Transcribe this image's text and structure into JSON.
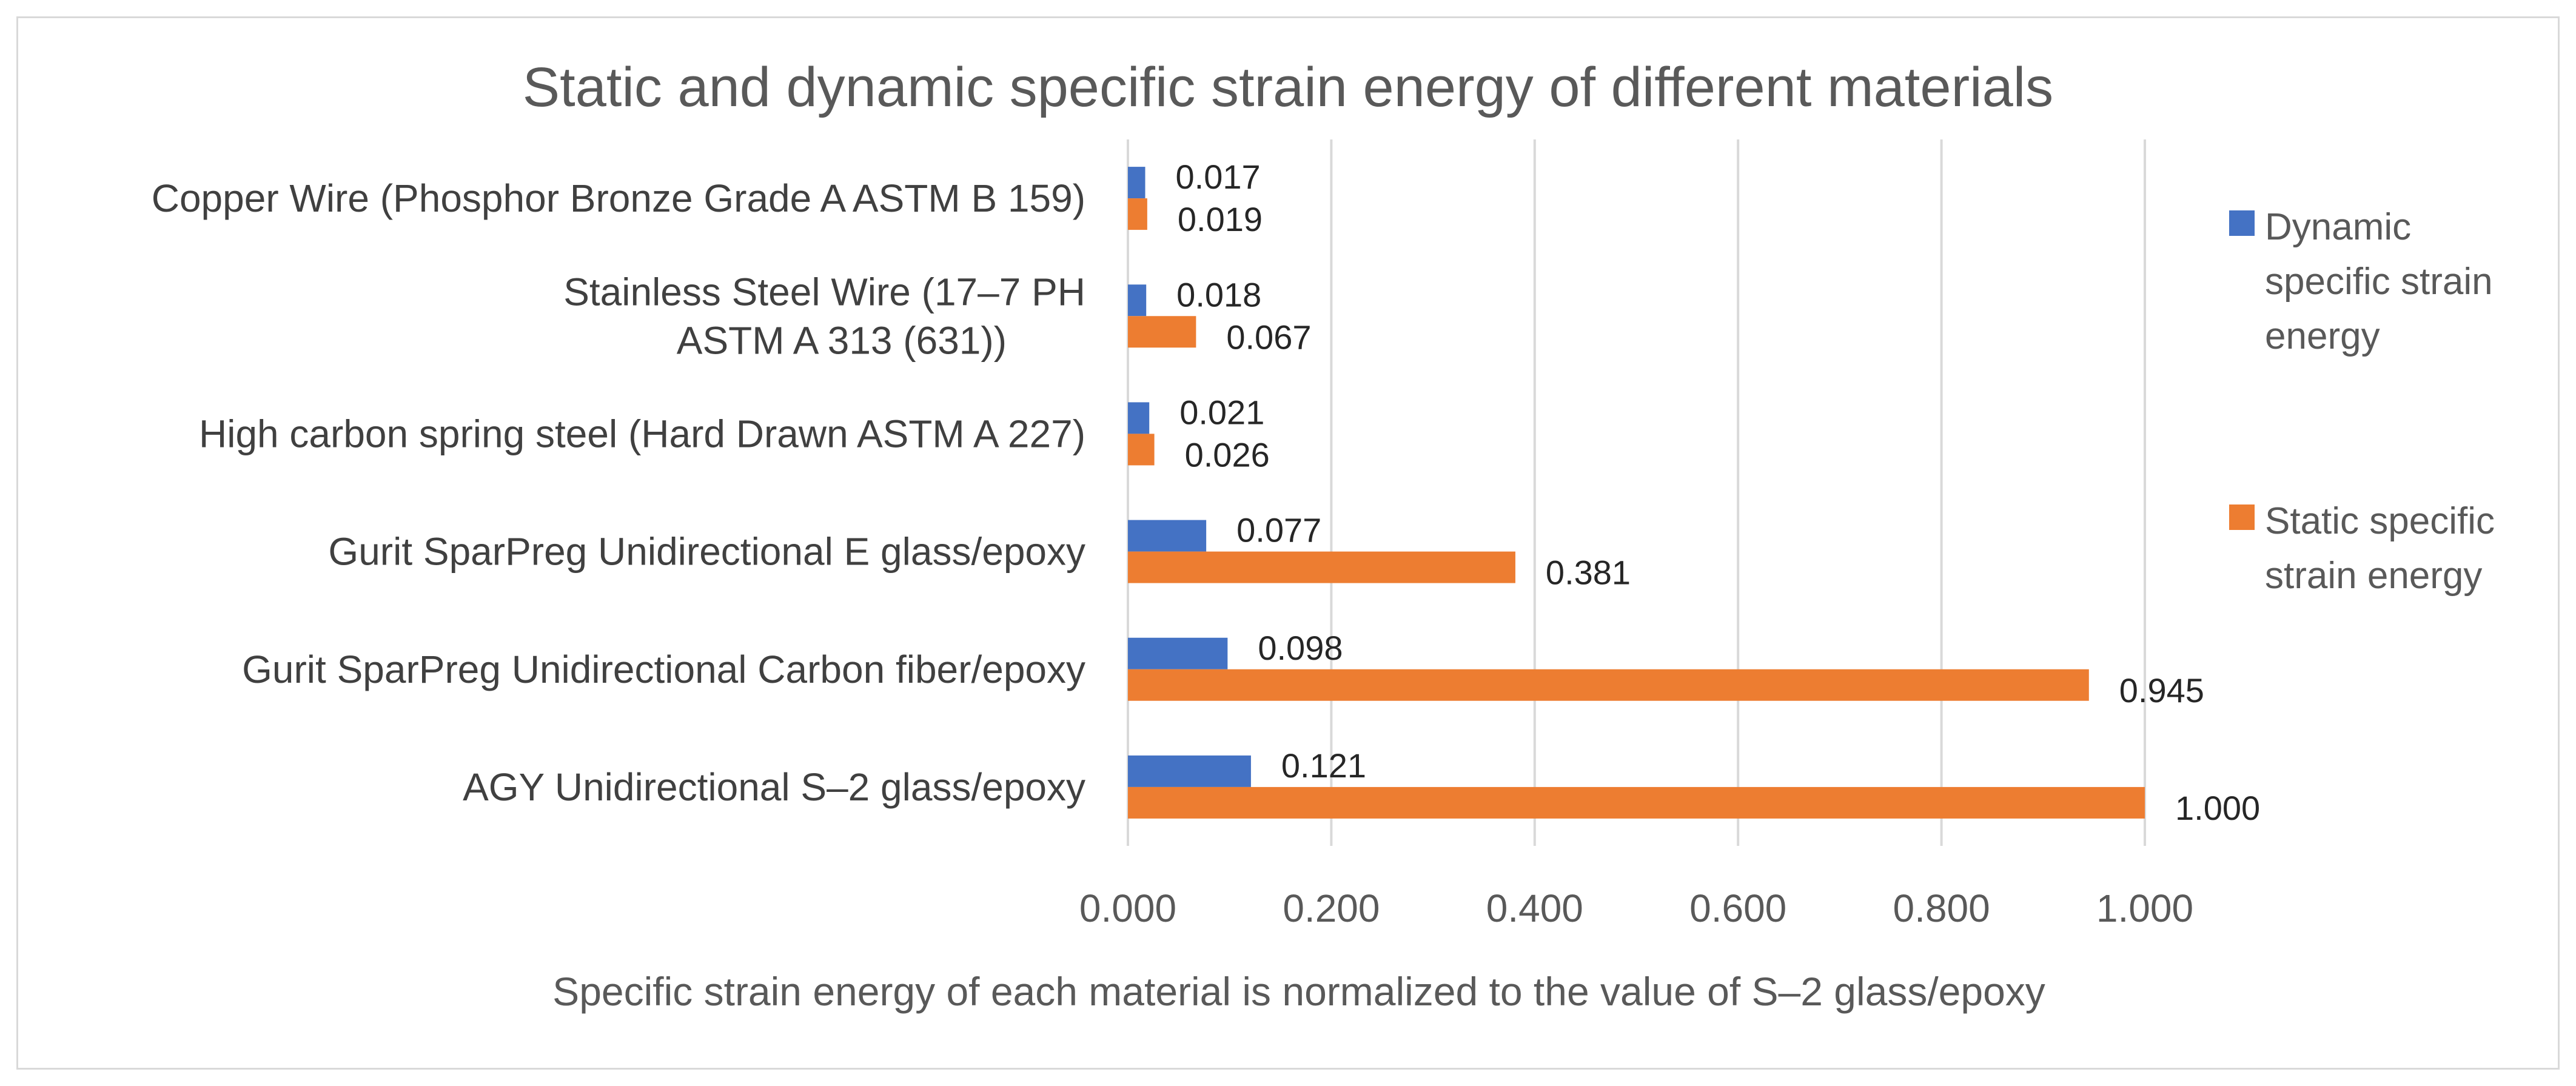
{
  "chart_data": {
    "type": "bar",
    "orientation": "horizontal",
    "title": "Static and dynamic specific strain energy of different materials",
    "xlabel": "Specific strain energy of each material is normalized to the value of  S–2 glass/epoxy",
    "ylabel": "",
    "xlim": [
      0,
      1.0
    ],
    "x_ticks": [
      "0.000",
      "0.200",
      "0.400",
      "0.600",
      "0.800",
      "1.000"
    ],
    "grid": true,
    "legend_position": "right",
    "categories": [
      [
        "Copper Wire (Phosphor Bronze Grade A ASTM B 159)"
      ],
      [
        "Stainless Steel Wire (17–7 PH",
        "ASTM A 313 (631))"
      ],
      [
        "High carbon spring steel (Hard Drawn ASTM A 227)"
      ],
      [
        "Gurit SparPreg Unidirectional E glass/epoxy"
      ],
      [
        "Gurit SparPreg Unidirectional Carbon fiber/epoxy"
      ],
      [
        "AGY Unidirectional S–2 glass/epoxy"
      ]
    ],
    "series": [
      {
        "name": "Dynamic specific strain energy",
        "legend_lines": [
          "Dynamic",
          "specific strain",
          "energy"
        ],
        "color": "#4472c4",
        "values": [
          0.017,
          0.018,
          0.021,
          0.077,
          0.098,
          0.121
        ],
        "labels": [
          "0.017",
          "0.018",
          "0.021",
          "0.077",
          "0.098",
          "0.121"
        ]
      },
      {
        "name": "Static specific strain energy",
        "legend_lines": [
          "Static specific",
          "strain energy"
        ],
        "color": "#ed7d31",
        "values": [
          0.019,
          0.067,
          0.026,
          0.381,
          0.945,
          1.0
        ],
        "labels": [
          "0.019",
          "0.067",
          "0.026",
          "0.381",
          "0.945",
          "1.000"
        ]
      }
    ]
  }
}
